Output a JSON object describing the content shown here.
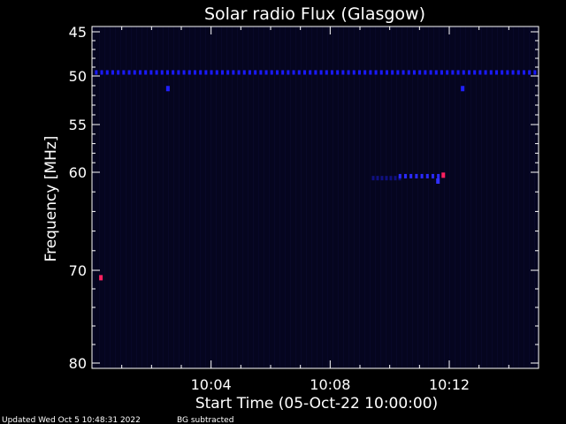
{
  "chart_data": {
    "type": "heatmap",
    "title": "Solar radio Flux (Glasgow)",
    "xlabel": "Start Time (05-Oct-22 10:00:00)",
    "ylabel": "Frequency [MHz]",
    "x_unit": "minutes",
    "xlim": [
      0,
      15
    ],
    "ylim": [
      45,
      80
    ],
    "y_inverted": true,
    "x_ticks": [
      {
        "value": 4,
        "label": "10:04"
      },
      {
        "value": 8,
        "label": "10:08"
      },
      {
        "value": 12,
        "label": "10:12"
      }
    ],
    "y_ticks": [
      {
        "value": 45,
        "label": "45"
      },
      {
        "value": 50,
        "label": "50"
      },
      {
        "value": 55,
        "label": "55"
      },
      {
        "value": 60,
        "label": "60"
      },
      {
        "value": 70,
        "label": "70"
      },
      {
        "value": 80,
        "label": "80"
      }
    ],
    "y_minor_ticks": [
      46,
      47,
      48,
      49,
      51,
      52,
      53,
      54,
      56,
      57,
      58,
      59,
      62,
      64,
      66,
      68,
      72,
      74,
      76,
      78
    ],
    "x_minor_ticks": [
      1,
      2,
      3,
      5,
      6,
      7,
      9,
      10,
      11,
      13,
      14
    ],
    "background_color": "#05051f",
    "features": [
      {
        "kind": "dotted-band",
        "freq": 49.6,
        "x_start": 0.1,
        "x_end": 15,
        "color": "#1a1aff"
      },
      {
        "kind": "point",
        "x": 2.55,
        "freq": 51.3,
        "color": "#2020ff"
      },
      {
        "kind": "point",
        "x": 12.45,
        "freq": 51.3,
        "color": "#2020ff"
      },
      {
        "kind": "faint-band",
        "freq": 60.6,
        "x_start": 9.4,
        "x_end": 10.3,
        "color": "#101080"
      },
      {
        "kind": "dotted-band",
        "freq": 60.4,
        "x_start": 10.3,
        "x_end": 11.6,
        "color": "#2a2aff"
      },
      {
        "kind": "point",
        "x": 11.62,
        "freq": 60.9,
        "color": "#3030ff"
      },
      {
        "kind": "point",
        "x": 11.8,
        "freq": 60.3,
        "color": "#ff2060"
      },
      {
        "kind": "point",
        "x": 0.3,
        "freq": 70.8,
        "color": "#ff2060"
      }
    ],
    "footer_left": "Updated Wed Oct  5 10:48:31 2022",
    "footer_right": "BG subtracted"
  }
}
